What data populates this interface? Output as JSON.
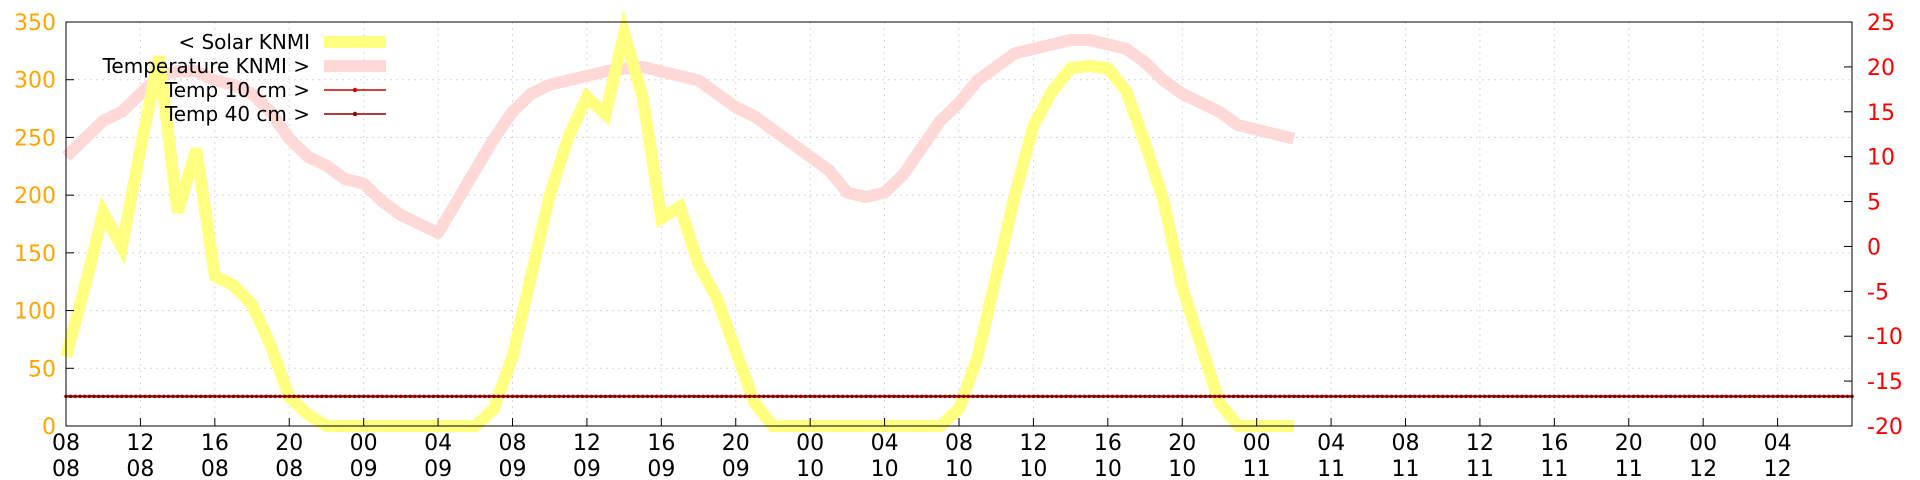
{
  "chart_data": {
    "type": "line",
    "title": "",
    "xlabel": "",
    "ylabel": "",
    "y2label": "",
    "ylim": [
      0,
      350
    ],
    "y2lim": [
      -20,
      25
    ],
    "grid": true,
    "legend_position": "top-left",
    "x_range": [
      "08 08",
      "12 08"
    ],
    "yticks": [
      "0",
      "50",
      "100",
      "150",
      "200",
      "250",
      "300",
      "350"
    ],
    "y2ticks": [
      "-20",
      "-15",
      "-10",
      "-5",
      "0",
      "5",
      "10",
      "15",
      "20",
      "25"
    ],
    "xticks": [
      {
        "top": "08",
        "bottom": "08"
      },
      {
        "top": "12",
        "bottom": "08"
      },
      {
        "top": "16",
        "bottom": "08"
      },
      {
        "top": "20",
        "bottom": "08"
      },
      {
        "top": "00",
        "bottom": "09"
      },
      {
        "top": "04",
        "bottom": "09"
      },
      {
        "top": "08",
        "bottom": "09"
      },
      {
        "top": "12",
        "bottom": "09"
      },
      {
        "top": "16",
        "bottom": "09"
      },
      {
        "top": "20",
        "bottom": "09"
      },
      {
        "top": "00",
        "bottom": "10"
      },
      {
        "top": "04",
        "bottom": "10"
      },
      {
        "top": "08",
        "bottom": "10"
      },
      {
        "top": "12",
        "bottom": "10"
      },
      {
        "top": "16",
        "bottom": "10"
      },
      {
        "top": "20",
        "bottom": "10"
      },
      {
        "top": "00",
        "bottom": "11"
      },
      {
        "top": "04",
        "bottom": "11"
      },
      {
        "top": "08",
        "bottom": "11"
      },
      {
        "top": "12",
        "bottom": "11"
      },
      {
        "top": "16",
        "bottom": "11"
      },
      {
        "top": "20",
        "bottom": "11"
      },
      {
        "top": "00",
        "bottom": "12"
      },
      {
        "top": "04",
        "bottom": "12"
      }
    ],
    "colors": {
      "solar": "#ffff80",
      "temperature": "#ffd8d8",
      "temp10": "#cc0000",
      "temp40": "#8b0000",
      "left_axis": "#ffa500",
      "right_axis": "#ff0000",
      "grid": "#d8d8d8"
    },
    "series": [
      {
        "name": "< Solar KNMI",
        "axis": "left",
        "x_hours": [
          0,
          1,
          2,
          3,
          4,
          5,
          6,
          7,
          8,
          9,
          10,
          11,
          12,
          13,
          14,
          15,
          16,
          17,
          18,
          19,
          20,
          21,
          22,
          23,
          24,
          25,
          26,
          27,
          28,
          29,
          30,
          31,
          32,
          33,
          34,
          35,
          36,
          37,
          38,
          39,
          40,
          41,
          42,
          43,
          44,
          45,
          46,
          47,
          48,
          49,
          50,
          51,
          52,
          53,
          54,
          55,
          56,
          57,
          58,
          59,
          60,
          61,
          62,
          63,
          64,
          65,
          66
        ],
        "values": [
          60,
          120,
          185,
          155,
          240,
          320,
          185,
          240,
          130,
          122,
          105,
          70,
          25,
          10,
          0,
          0,
          0,
          0,
          0,
          0,
          0,
          0,
          0,
          15,
          60,
          130,
          200,
          250,
          285,
          270,
          340,
          285,
          180,
          190,
          140,
          110,
          65,
          20,
          0,
          0,
          0,
          0,
          0,
          0,
          0,
          0,
          0,
          0,
          15,
          60,
          130,
          200,
          260,
          290,
          310,
          312,
          310,
          290,
          245,
          195,
          120,
          70,
          20,
          0,
          0,
          0,
          0
        ]
      },
      {
        "name": "Temperature KNMI >",
        "axis": "right",
        "x_hours": [
          0,
          1,
          2,
          3,
          4,
          5,
          6,
          7,
          8,
          9,
          10,
          11,
          12,
          13,
          14,
          15,
          16,
          17,
          18,
          19,
          20,
          21,
          22,
          23,
          24,
          25,
          26,
          27,
          28,
          29,
          30,
          31,
          32,
          33,
          34,
          35,
          36,
          37,
          38,
          39,
          40,
          41,
          42,
          43,
          44,
          45,
          46,
          47,
          48,
          49,
          50,
          51,
          52,
          53,
          54,
          55,
          56,
          57,
          58,
          59,
          60,
          61,
          62,
          63,
          64,
          65,
          66
        ],
        "values": [
          10,
          12,
          14,
          15,
          17,
          19,
          19.5,
          19.5,
          18.5,
          18,
          17,
          15,
          12,
          10,
          9,
          7.5,
          7,
          5,
          3.5,
          2.5,
          1.5,
          5,
          8.5,
          12,
          15,
          17,
          18,
          18.5,
          19,
          19.5,
          19.8,
          20,
          19.5,
          19,
          18.5,
          17,
          15.5,
          14.5,
          13,
          11.5,
          10,
          8.5,
          6,
          5.5,
          6,
          8,
          11,
          14,
          16,
          18.5,
          20,
          21.5,
          22,
          22.5,
          23,
          23,
          22.5,
          22,
          20.5,
          18.5,
          17,
          16,
          15,
          13.5,
          13,
          12.5,
          12
        ]
      },
      {
        "name": "Temp 10 cm >",
        "axis": "right",
        "x_hours": [
          0,
          96
        ],
        "values": [
          -16.7,
          -16.7
        ]
      },
      {
        "name": "Temp 40 cm >",
        "axis": "right",
        "x_hours": [
          0,
          96
        ],
        "values": [
          -16.7,
          -16.7
        ]
      }
    ]
  }
}
